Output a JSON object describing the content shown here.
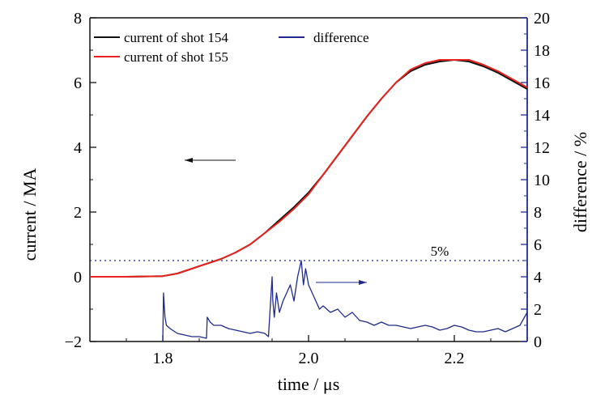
{
  "chart_data": {
    "type": "line",
    "xlabel": "time / μs",
    "ylabel_left": "current / MA",
    "ylabel_right": "difference / %",
    "xlim": [
      1.7,
      2.3
    ],
    "ylim_left": [
      -2,
      8
    ],
    "ylim_right": [
      0,
      20
    ],
    "x_ticks": [
      1.8,
      2.0,
      2.2
    ],
    "x_tick_labels": [
      "1.8",
      "2.0",
      "2.2"
    ],
    "y_left_ticks": [
      -2,
      0,
      2,
      4,
      6,
      8
    ],
    "y_left_tick_labels": [
      "−2",
      "0",
      "2",
      "4",
      "6",
      "8"
    ],
    "y_right_ticks": [
      0,
      2,
      4,
      6,
      8,
      10,
      12,
      14,
      16,
      18,
      20
    ],
    "y_right_tick_labels": [
      "0",
      "2",
      "4",
      "6",
      "8",
      "10",
      "12",
      "14",
      "16",
      "18",
      "20"
    ],
    "legend_location": "top-left",
    "grid": false,
    "series": [
      {
        "name": "current of shot 154",
        "axis": "left",
        "color": "#111111",
        "x": [
          1.7,
          1.75,
          1.8,
          1.82,
          1.84,
          1.86,
          1.88,
          1.9,
          1.92,
          1.94,
          1.96,
          1.98,
          2.0,
          2.02,
          2.04,
          2.06,
          2.08,
          2.1,
          2.12,
          2.14,
          2.16,
          2.18,
          2.2,
          2.22,
          2.24,
          2.26,
          2.28,
          2.3
        ],
        "y": [
          0.0,
          0.0,
          0.02,
          0.1,
          0.25,
          0.4,
          0.55,
          0.75,
          1.0,
          1.35,
          1.75,
          2.15,
          2.6,
          3.15,
          3.75,
          4.35,
          4.95,
          5.5,
          6.0,
          6.35,
          6.55,
          6.65,
          6.7,
          6.65,
          6.5,
          6.3,
          6.05,
          5.8
        ]
      },
      {
        "name": "current of shot 155",
        "axis": "left",
        "color": "#e8221c",
        "x": [
          1.7,
          1.75,
          1.8,
          1.82,
          1.84,
          1.86,
          1.88,
          1.9,
          1.92,
          1.94,
          1.96,
          1.98,
          2.0,
          2.02,
          2.04,
          2.06,
          2.08,
          2.1,
          2.12,
          2.14,
          2.16,
          2.18,
          2.2,
          2.22,
          2.24,
          2.26,
          2.28,
          2.3
        ],
        "y": [
          0.0,
          0.0,
          0.02,
          0.1,
          0.25,
          0.4,
          0.55,
          0.75,
          1.0,
          1.35,
          1.7,
          2.1,
          2.55,
          3.15,
          3.75,
          4.35,
          4.95,
          5.5,
          6.0,
          6.4,
          6.6,
          6.7,
          6.7,
          6.7,
          6.55,
          6.35,
          6.1,
          5.85
        ]
      },
      {
        "name": "difference",
        "axis": "right",
        "color": "#1f2a8c",
        "x": [
          1.8,
          1.801,
          1.803,
          1.805,
          1.81,
          1.82,
          1.83,
          1.84,
          1.85,
          1.86,
          1.861,
          1.865,
          1.87,
          1.88,
          1.89,
          1.9,
          1.91,
          1.92,
          1.93,
          1.94,
          1.945,
          1.95,
          1.951,
          1.953,
          1.956,
          1.96,
          1.965,
          1.97,
          1.975,
          1.98,
          1.985,
          1.99,
          1.993,
          1.996,
          2.0,
          2.005,
          2.01,
          2.015,
          2.02,
          2.03,
          2.04,
          2.05,
          2.06,
          2.07,
          2.08,
          2.09,
          2.1,
          2.11,
          2.12,
          2.13,
          2.14,
          2.15,
          2.16,
          2.17,
          2.18,
          2.19,
          2.2,
          2.21,
          2.22,
          2.23,
          2.24,
          2.25,
          2.26,
          2.27,
          2.28,
          2.29,
          2.3
        ],
        "y": [
          0.0,
          3.0,
          1.5,
          1.0,
          0.8,
          0.5,
          0.4,
          0.3,
          0.3,
          0.2,
          1.5,
          1.2,
          1.0,
          1.0,
          0.8,
          0.7,
          0.6,
          0.5,
          0.6,
          0.5,
          0.3,
          4.0,
          2.5,
          1.5,
          3.0,
          1.8,
          2.5,
          3.0,
          3.5,
          2.5,
          4.0,
          5.0,
          3.5,
          4.5,
          3.5,
          3.0,
          2.5,
          2.0,
          2.2,
          1.8,
          2.0,
          1.5,
          1.8,
          1.3,
          1.2,
          1.0,
          1.2,
          1.0,
          1.0,
          0.9,
          0.8,
          0.9,
          1.0,
          0.9,
          0.7,
          0.8,
          1.0,
          0.9,
          0.7,
          0.6,
          0.6,
          0.7,
          0.8,
          0.6,
          0.8,
          1.0,
          1.8
        ]
      }
    ],
    "reference_line": {
      "axis": "right",
      "value": 5,
      "label": "5%",
      "color": "#1f2a8c"
    },
    "annotations": [
      {
        "kind": "arrow",
        "axis": "left",
        "from": [
          1.9,
          3.6
        ],
        "to": [
          1.83,
          3.6
        ],
        "color": "#111111"
      },
      {
        "kind": "arrow",
        "axis": "right",
        "from": [
          2.01,
          3.65
        ],
        "to": [
          2.08,
          3.65
        ],
        "color": "#1f2a8c"
      }
    ]
  }
}
